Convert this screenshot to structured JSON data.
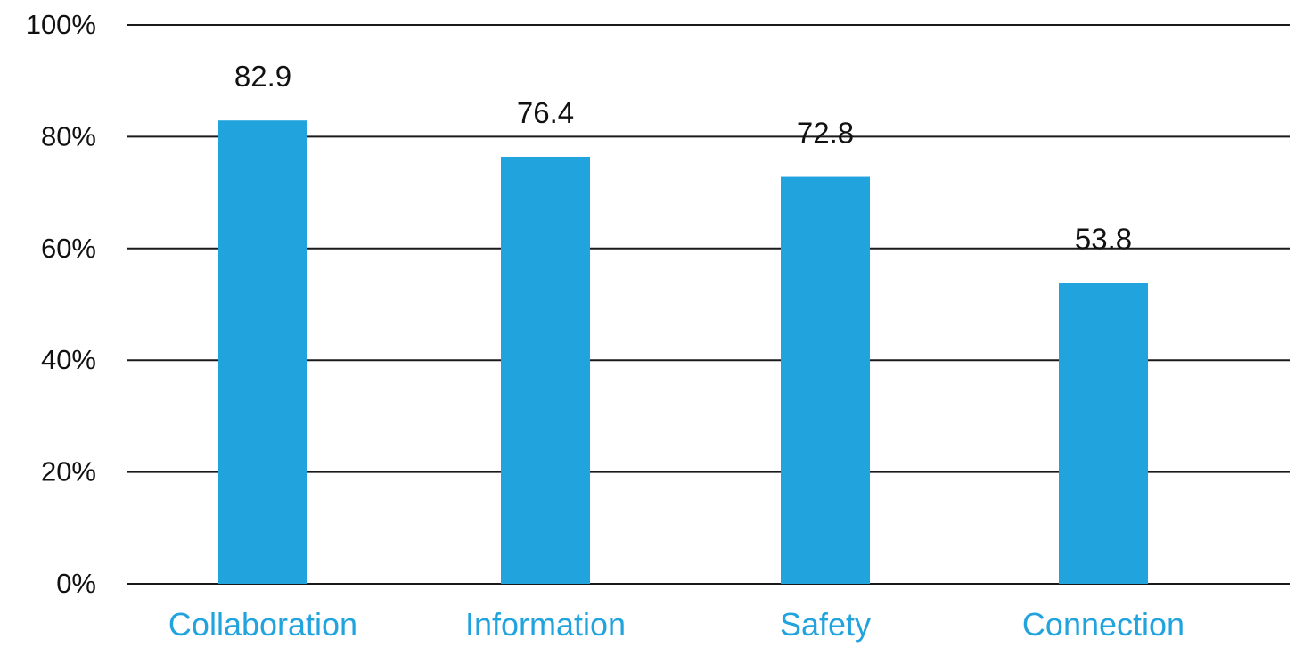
{
  "chart_data": {
    "type": "bar",
    "categories": [
      "Collaboration",
      "Information",
      "Safety",
      "Connection"
    ],
    "values": [
      82.9,
      76.4,
      72.8,
      53.8
    ],
    "data_labels": [
      "82.9",
      "76.4",
      "72.8",
      "53.8"
    ],
    "ylim": [
      0,
      100
    ],
    "yticks": [
      0,
      20,
      40,
      60,
      80,
      100
    ],
    "ytick_labels": [
      "0%",
      "20%",
      "40%",
      "60%",
      "80%",
      "100%"
    ],
    "grid": "horizontal",
    "colors": {
      "bar": "#21A3DE",
      "category_label": "#21A3DE",
      "gridline": "#1a1a1a",
      "text": "#111111"
    }
  }
}
